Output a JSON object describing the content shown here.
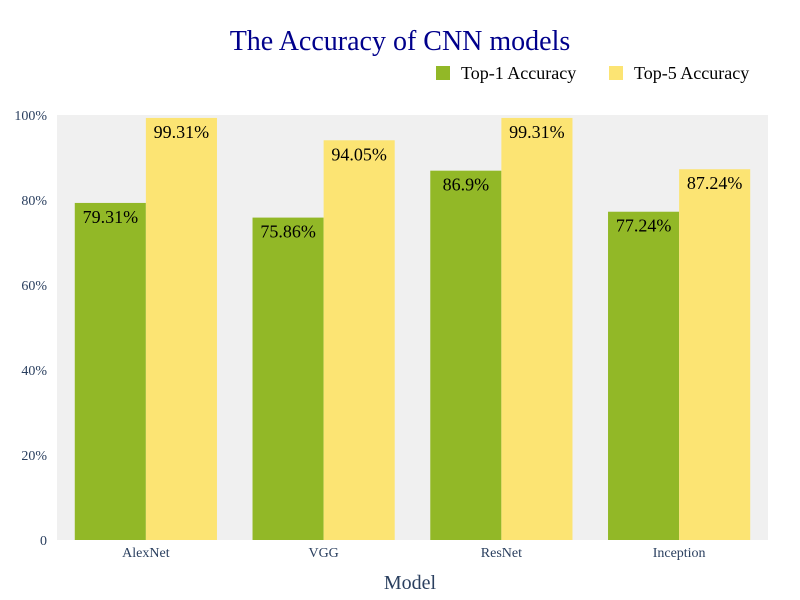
{
  "chart_data": {
    "type": "bar",
    "title": "The Accuracy of CNN models",
    "xlabel": "Model",
    "ylabel": "",
    "categories": [
      "AlexNet",
      "VGG",
      "ResNet",
      "Inception"
    ],
    "series": [
      {
        "name": "Top-1 Accuracy",
        "color": "#92b827",
        "values": [
          79.31,
          75.86,
          86.9,
          77.24
        ],
        "labels": [
          "79.31%",
          "75.86%",
          "86.9%",
          "77.24%"
        ]
      },
      {
        "name": "Top-5 Accuracy",
        "color": "#fce473",
        "values": [
          99.31,
          94.05,
          99.31,
          87.24
        ],
        "labels": [
          "99.31%",
          "94.05%",
          "99.31%",
          "87.24%"
        ]
      }
    ],
    "ylim": [
      0,
      100
    ],
    "yticks": [
      0,
      20,
      40,
      60,
      80,
      100
    ],
    "ytick_labels": [
      "0",
      "20%",
      "40%",
      "60%",
      "80%",
      "100%"
    ],
    "grid": false,
    "legend_position": "top-right",
    "colors": {
      "title": "#00008b",
      "plot_background": "#f0f0f0",
      "axis_text": "#2a3f5f",
      "label_text": "#000000"
    }
  }
}
